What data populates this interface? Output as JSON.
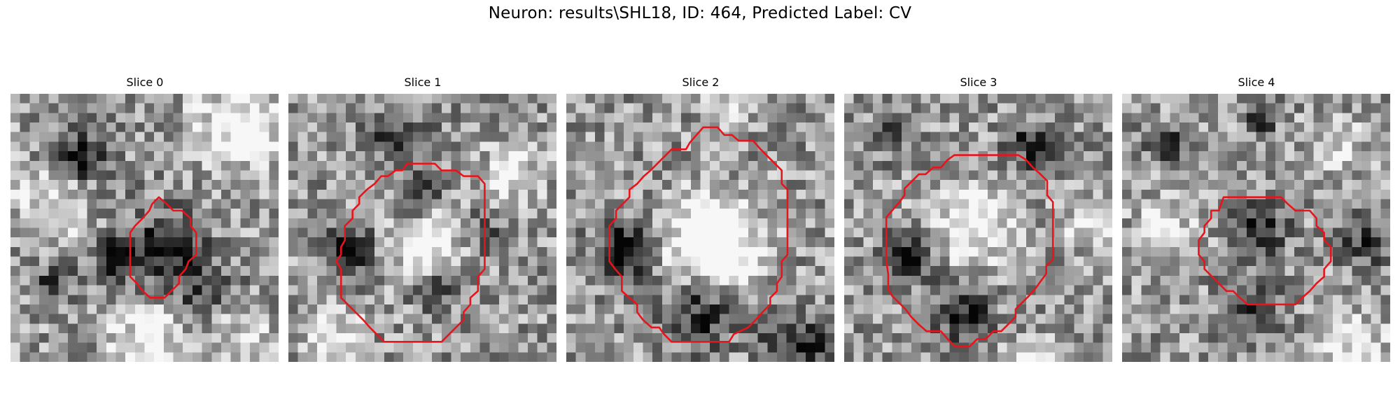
{
  "figure": {
    "title": "Neuron: results\\SHL18, ID: 464, Predicted Label: CV"
  },
  "colors": {
    "contour": "#e8141b",
    "background": "#ffffff",
    "colormap": "gray"
  },
  "image_grid": {
    "cols": 28,
    "rows": 28
  },
  "panels": [
    {
      "title": "Slice 0",
      "contour_points": [
        [
          15.5,
          10.8
        ],
        [
          16.3,
          11.5
        ],
        [
          17,
          12.2
        ],
        [
          17.9,
          12.2
        ],
        [
          18.8,
          13
        ],
        [
          18.8,
          13.8
        ],
        [
          19.4,
          14.5
        ],
        [
          19.4,
          15.3
        ],
        [
          19.4,
          16.8
        ],
        [
          18.6,
          17.5
        ],
        [
          18.3,
          18.3
        ],
        [
          17.6,
          19.1
        ],
        [
          17.6,
          19.8
        ],
        [
          16.1,
          21.3
        ],
        [
          14.6,
          21.3
        ],
        [
          13.8,
          20.6
        ],
        [
          13.2,
          19.8
        ],
        [
          12.5,
          19.1
        ],
        [
          12.5,
          16.8
        ],
        [
          12.5,
          14.5
        ],
        [
          13,
          13.8
        ],
        [
          13.8,
          13
        ],
        [
          14.5,
          12.2
        ],
        [
          14.8,
          11.5
        ]
      ],
      "dark_blobs": [
        [
          7,
          6,
          2.5,
          0.55
        ],
        [
          15.5,
          16,
          4,
          0.5
        ],
        [
          10.5,
          16.5,
          2,
          0.6
        ],
        [
          4,
          19,
          2,
          0.35
        ],
        [
          20,
          20,
          3,
          0.3
        ]
      ],
      "light_blobs": [
        [
          23,
          3,
          4,
          0.45
        ],
        [
          4,
          11,
          3.5,
          0.35
        ],
        [
          14,
          25,
          4,
          0.35
        ],
        [
          24,
          25,
          3,
          0.3
        ]
      ]
    },
    {
      "title": "Slice 1",
      "contour_points": [
        [
          13.8,
          7.3
        ],
        [
          15.3,
          7.3
        ],
        [
          16,
          8
        ],
        [
          17.5,
          8
        ],
        [
          18.3,
          8.6
        ],
        [
          19.8,
          8.6
        ],
        [
          20.5,
          9.4
        ],
        [
          20.5,
          11.5
        ],
        [
          20.5,
          13.8
        ],
        [
          20.5,
          16.8
        ],
        [
          20.5,
          18.3
        ],
        [
          19.8,
          19.1
        ],
        [
          19.8,
          20.6
        ],
        [
          19,
          21.3
        ],
        [
          19,
          22
        ],
        [
          18.3,
          22.8
        ],
        [
          18.3,
          23.6
        ],
        [
          17.5,
          24.4
        ],
        [
          16.8,
          25.1
        ],
        [
          16,
          25.9
        ],
        [
          14.5,
          25.9
        ],
        [
          13,
          25.9
        ],
        [
          11.5,
          25.9
        ],
        [
          10,
          25.9
        ],
        [
          9.2,
          25.1
        ],
        [
          8.5,
          24.4
        ],
        [
          7.8,
          23.6
        ],
        [
          7,
          22.8
        ],
        [
          6.2,
          22
        ],
        [
          5.5,
          21.3
        ],
        [
          5.5,
          19.8
        ],
        [
          5.5,
          18.3
        ],
        [
          5,
          17.5
        ],
        [
          5.5,
          16.8
        ],
        [
          5.5,
          16
        ],
        [
          5.9,
          15.3
        ],
        [
          5.9,
          13.8
        ],
        [
          6.7,
          13
        ],
        [
          6.7,
          12.2
        ],
        [
          7.4,
          11.5
        ],
        [
          7.4,
          10.8
        ],
        [
          8.2,
          10
        ],
        [
          9,
          9.4
        ],
        [
          9.7,
          8.6
        ],
        [
          10.4,
          8.6
        ],
        [
          11.2,
          8
        ],
        [
          11.9,
          8
        ],
        [
          12.4,
          7.3
        ],
        [
          13,
          7.3
        ]
      ],
      "dark_blobs": [
        [
          13,
          10,
          2,
          0.5
        ],
        [
          6,
          16,
          2.5,
          0.55
        ],
        [
          14.5,
          20,
          2,
          0.45
        ],
        [
          11,
          4,
          3,
          0.4
        ],
        [
          20,
          14,
          2,
          0.3
        ]
      ],
      "light_blobs": [
        [
          14,
          15,
          3.5,
          0.45
        ],
        [
          23,
          8,
          3,
          0.35
        ],
        [
          4,
          25,
          3,
          0.3
        ]
      ]
    },
    {
      "title": "Slice 2",
      "contour_points": [
        [
          14.3,
          3.5
        ],
        [
          15.8,
          3.5
        ],
        [
          16.5,
          4.3
        ],
        [
          17.3,
          4.3
        ],
        [
          18,
          4.9
        ],
        [
          19.5,
          4.9
        ],
        [
          20.3,
          5.8
        ],
        [
          21,
          6.5
        ],
        [
          21.8,
          7.3
        ],
        [
          22.5,
          8
        ],
        [
          22.5,
          9.4
        ],
        [
          23.1,
          10
        ],
        [
          23.1,
          11.5
        ],
        [
          23.1,
          12.2
        ],
        [
          23.1,
          13.8
        ],
        [
          23.1,
          15.3
        ],
        [
          23.1,
          16.8
        ],
        [
          22.5,
          17.5
        ],
        [
          22.5,
          19.1
        ],
        [
          22,
          19.8
        ],
        [
          22,
          20.6
        ],
        [
          21.3,
          21.3
        ],
        [
          21.3,
          22
        ],
        [
          20.5,
          22.8
        ],
        [
          19.8,
          23.6
        ],
        [
          19,
          24.4
        ],
        [
          17.5,
          25.1
        ],
        [
          17,
          25.9
        ],
        [
          15.5,
          25.9
        ],
        [
          14,
          25.9
        ],
        [
          12.5,
          25.9
        ],
        [
          11,
          25.9
        ],
        [
          10.2,
          25.1
        ],
        [
          9.7,
          24.4
        ],
        [
          8.9,
          24.4
        ],
        [
          8,
          23.6
        ],
        [
          7.4,
          22.8
        ],
        [
          7.4,
          22
        ],
        [
          6.6,
          21.3
        ],
        [
          5.8,
          20.6
        ],
        [
          5.8,
          19.1
        ],
        [
          5.1,
          18.3
        ],
        [
          4.5,
          17.5
        ],
        [
          4.5,
          16.8
        ],
        [
          4.5,
          15.3
        ],
        [
          4.5,
          13.8
        ],
        [
          5.2,
          13
        ],
        [
          5.2,
          12.2
        ],
        [
          5.9,
          11.5
        ],
        [
          6.6,
          10.8
        ],
        [
          6.6,
          10
        ],
        [
          7.4,
          9.4
        ],
        [
          8.1,
          8.6
        ],
        [
          8.8,
          8
        ],
        [
          9.5,
          7.3
        ],
        [
          10.3,
          6.5
        ],
        [
          11,
          5.8
        ],
        [
          12.5,
          5.8
        ],
        [
          12.9,
          5.1
        ],
        [
          13.6,
          4.3
        ]
      ],
      "dark_blobs": [
        [
          5.5,
          16,
          3,
          0.6
        ],
        [
          13.5,
          22.5,
          3.5,
          0.45
        ],
        [
          22,
          24,
          2.5,
          0.35
        ],
        [
          25,
          26,
          2,
          0.4
        ]
      ],
      "light_blobs": [
        [
          15,
          15,
          4.5,
          0.75
        ],
        [
          16,
          2,
          2,
          0.3
        ]
      ]
    },
    {
      "title": "Slice 3",
      "contour_points": [
        [
          12.2,
          6.4
        ],
        [
          13.7,
          6.4
        ],
        [
          15.2,
          6.4
        ],
        [
          16.7,
          6.4
        ],
        [
          18.2,
          6.4
        ],
        [
          19,
          6.9
        ],
        [
          19.7,
          7.7
        ],
        [
          20.5,
          8.4
        ],
        [
          21.2,
          9.1
        ],
        [
          21.2,
          10.6
        ],
        [
          21.8,
          11.3
        ],
        [
          21.8,
          12.8
        ],
        [
          21.8,
          14.3
        ],
        [
          21.8,
          15.8
        ],
        [
          21.8,
          17.3
        ],
        [
          21.1,
          18
        ],
        [
          21.1,
          18.8
        ],
        [
          20.5,
          19.6
        ],
        [
          20,
          20.3
        ],
        [
          19.3,
          21.1
        ],
        [
          18.6,
          21.8
        ],
        [
          17.9,
          22.5
        ],
        [
          17.9,
          23.3
        ],
        [
          17.2,
          24
        ],
        [
          16.4,
          24.8
        ],
        [
          15.6,
          24.8
        ],
        [
          14.8,
          25.6
        ],
        [
          13.9,
          25.6
        ],
        [
          13.1,
          26.4
        ],
        [
          11.6,
          26.4
        ],
        [
          10.8,
          25.6
        ],
        [
          10.1,
          24.8
        ],
        [
          8.6,
          24.8
        ],
        [
          7.8,
          24.1
        ],
        [
          7,
          23.3
        ],
        [
          6.4,
          22.5
        ],
        [
          5.7,
          21.8
        ],
        [
          5,
          21.1
        ],
        [
          4.6,
          20.4
        ],
        [
          4.6,
          18.9
        ],
        [
          4.4,
          17.4
        ],
        [
          4.4,
          15.9
        ],
        [
          4.4,
          14.4
        ],
        [
          4.4,
          12.9
        ],
        [
          5,
          12.2
        ],
        [
          5.7,
          11.4
        ],
        [
          6.3,
          10.6
        ],
        [
          6.3,
          9.9
        ],
        [
          7,
          9.2
        ],
        [
          7.8,
          8.4
        ],
        [
          8.5,
          8.4
        ],
        [
          9.3,
          7.7
        ],
        [
          10.1,
          7.7
        ],
        [
          10.8,
          6.9
        ],
        [
          11.5,
          6.4
        ]
      ],
      "dark_blobs": [
        [
          6.5,
          16.5,
          2.5,
          0.6
        ],
        [
          12,
          22.5,
          3,
          0.4
        ],
        [
          19,
          5,
          2.5,
          0.4
        ],
        [
          4,
          4,
          2,
          0.3
        ]
      ],
      "light_blobs": [
        [
          13,
          13,
          4,
          0.5
        ],
        [
          19,
          27,
          2,
          0.4
        ],
        [
          25,
          13,
          2.5,
          0.3
        ]
      ]
    },
    {
      "title": "Slice 4",
      "contour_points": [
        [
          10.6,
          10.8
        ],
        [
          12.1,
          10.8
        ],
        [
          13.6,
          10.8
        ],
        [
          15.1,
          10.8
        ],
        [
          16.6,
          10.8
        ],
        [
          17.3,
          11.5
        ],
        [
          18.1,
          12.2
        ],
        [
          19.6,
          12.2
        ],
        [
          20.3,
          13
        ],
        [
          20.3,
          13.8
        ],
        [
          21.1,
          14.5
        ],
        [
          21.1,
          15.3
        ],
        [
          21.8,
          16
        ],
        [
          21.8,
          17.5
        ],
        [
          21.1,
          18.3
        ],
        [
          21.1,
          19.1
        ],
        [
          20.3,
          19.8
        ],
        [
          19.6,
          20.6
        ],
        [
          18.8,
          21.3
        ],
        [
          18.1,
          22
        ],
        [
          17.3,
          22
        ],
        [
          15.8,
          22
        ],
        [
          14.3,
          22
        ],
        [
          13.1,
          22
        ],
        [
          12.3,
          21.3
        ],
        [
          11.6,
          20.6
        ],
        [
          10.9,
          20.6
        ],
        [
          10.1,
          19.8
        ],
        [
          9.4,
          19.1
        ],
        [
          8.6,
          18.3
        ],
        [
          8.6,
          17.5
        ],
        [
          8,
          16.8
        ],
        [
          8,
          15.3
        ],
        [
          8.6,
          14.5
        ],
        [
          8.6,
          13.8
        ],
        [
          9.3,
          13
        ],
        [
          9.3,
          12.2
        ],
        [
          10.1,
          12.2
        ]
      ],
      "dark_blobs": [
        [
          14,
          13.5,
          2.5,
          0.5
        ],
        [
          13,
          22,
          3,
          0.35
        ],
        [
          25,
          15,
          2.5,
          0.4
        ],
        [
          4.5,
          5,
          2,
          0.4
        ],
        [
          14,
          2,
          1.5,
          0.5
        ]
      ],
      "light_blobs": [
        [
          4,
          13,
          3,
          0.3
        ],
        [
          24,
          26,
          3,
          0.4
        ],
        [
          22,
          5,
          2.5,
          0.3
        ]
      ]
    }
  ]
}
